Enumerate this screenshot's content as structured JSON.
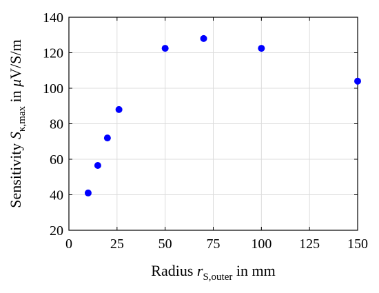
{
  "chart_data": {
    "type": "scatter",
    "title": "",
    "xlabel": {
      "prefix": "Radius ",
      "symbol": "r",
      "subscript": "S,outer",
      "suffix": " in mm"
    },
    "ylabel": {
      "prefix": "Sensitivity ",
      "symbol": "S",
      "subscript": "κ,max",
      "middle": " in ",
      "unit_symbol": "μ",
      "unit": "V/S/m"
    },
    "xlim": [
      0,
      150
    ],
    "ylim": [
      20,
      140
    ],
    "x_ticks": [
      0,
      25,
      50,
      75,
      100,
      125,
      150
    ],
    "y_ticks": [
      20,
      40,
      60,
      80,
      100,
      120,
      140
    ],
    "grid": true,
    "marker_color": "#0000ff",
    "series": [
      {
        "x": [
          10,
          15,
          20,
          26,
          50,
          70,
          100,
          150
        ],
        "y": [
          41,
          56.5,
          72,
          88,
          122.5,
          128,
          122.5,
          104
        ]
      }
    ]
  }
}
